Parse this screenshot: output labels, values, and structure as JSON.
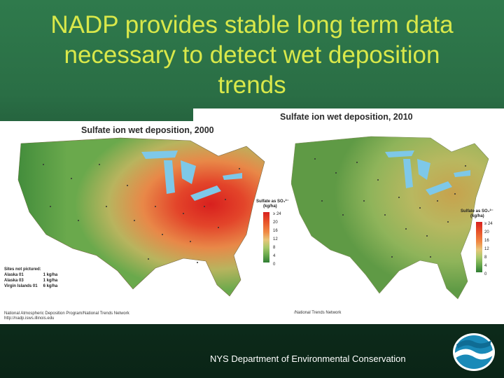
{
  "slide": {
    "title_lines": [
      "NADP provides stable long term data",
      "necessary to detect wet deposition",
      "trends"
    ],
    "footer": "NYS Department of Environmental  Conservation"
  },
  "map_2000": {
    "title": "Sulfate ion wet deposition, 2000",
    "legend_title_line1": "Sulfate as SO₄²⁻",
    "legend_title_line2": "(kg/ha)",
    "legend_ticks": [
      "≥ 24",
      "20",
      "16",
      "12",
      "8",
      "4",
      "0"
    ],
    "sites_header": "Sites not pictured:",
    "sites": [
      {
        "name": "Alaska 01",
        "value": "1 kg/ha"
      },
      {
        "name": "Alaska 03",
        "value": "1 kg/ha"
      },
      {
        "name": "Virgin Islands 01",
        "value": "6 kg/ha"
      }
    ],
    "credit_line1": "National Atmospheric Deposition Program/National Trends Network",
    "credit_line2": "http://nadp.isws.illinois.edu"
  },
  "map_2010": {
    "title": "Sulfate ion wet deposition, 2010",
    "legend_title_line1": "Sulfate as SO₄²⁻",
    "legend_title_line2": "(kg/ha)",
    "legend_ticks": [
      "≥ 24",
      "20",
      "16",
      "12",
      "8",
      "4",
      "0"
    ],
    "credit_visible": "/National Trends Network"
  },
  "colors": {
    "title": "#d9e84a",
    "high_deposition": "#d8201e",
    "low_deposition": "#2f7d33",
    "lakes": "#7ec8e8"
  },
  "icons": {
    "logo": "nysdec-logo-icon"
  }
}
